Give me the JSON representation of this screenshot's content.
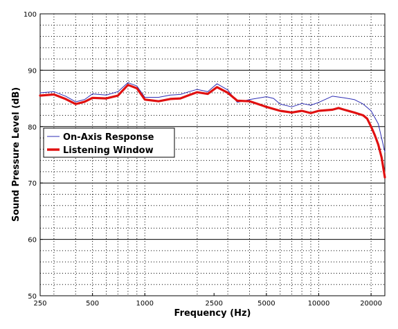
{
  "chart_data": {
    "type": "line",
    "xlabel": "Frequency (Hz)",
    "ylabel": "Sound Pressure Level (dB)",
    "xscale": "log",
    "xlim": [
      250,
      24000
    ],
    "ylim": [
      50,
      100
    ],
    "xticks": [
      250,
      500,
      1000,
      2500,
      5000,
      10000,
      20000
    ],
    "xtick_labels": [
      "250",
      "500",
      "1000",
      "2500",
      "5000",
      "10000",
      "20000"
    ],
    "yticks": [
      50,
      60,
      70,
      80,
      90,
      100
    ],
    "ytick_labels": [
      "50",
      "60",
      "70",
      "80",
      "90",
      "100"
    ],
    "grid": "major solid horizontal, minor dotted",
    "legend_position": "center-left",
    "series": [
      {
        "name": "On-Axis Response",
        "color": "#2d2db4",
        "points": [
          [
            250,
            86
          ],
          [
            300,
            86.2
          ],
          [
            350,
            85.4
          ],
          [
            400,
            84.4
          ],
          [
            450,
            84.8
          ],
          [
            500,
            85.8
          ],
          [
            600,
            85.6
          ],
          [
            700,
            86.2
          ],
          [
            800,
            87.8
          ],
          [
            900,
            87.2
          ],
          [
            1000,
            85.2
          ],
          [
            1200,
            85.2
          ],
          [
            1400,
            85.6
          ],
          [
            1600,
            85.7
          ],
          [
            1800,
            86.2
          ],
          [
            2000,
            86.6
          ],
          [
            2300,
            86.2
          ],
          [
            2600,
            87.6
          ],
          [
            3000,
            86.5
          ],
          [
            3400,
            84.3
          ],
          [
            4000,
            84.8
          ],
          [
            5000,
            85.3
          ],
          [
            5500,
            85
          ],
          [
            6000,
            84
          ],
          [
            7000,
            83.5
          ],
          [
            8000,
            84.1
          ],
          [
            9000,
            83.8
          ],
          [
            10000,
            84.3
          ],
          [
            12000,
            85.4
          ],
          [
            14000,
            85.1
          ],
          [
            16000,
            84.8
          ],
          [
            18000,
            84
          ],
          [
            20000,
            82.8
          ],
          [
            22000,
            80.5
          ],
          [
            24000,
            75.5
          ]
        ]
      },
      {
        "name": "Listening Window",
        "color": "#e01010",
        "points": [
          [
            250,
            85.5
          ],
          [
            300,
            85.7
          ],
          [
            350,
            84.9
          ],
          [
            400,
            84
          ],
          [
            450,
            84.4
          ],
          [
            500,
            85.1
          ],
          [
            600,
            85
          ],
          [
            700,
            85.5
          ],
          [
            800,
            87.4
          ],
          [
            900,
            86.8
          ],
          [
            1000,
            84.8
          ],
          [
            1200,
            84.5
          ],
          [
            1400,
            84.9
          ],
          [
            1600,
            85
          ],
          [
            1800,
            85.6
          ],
          [
            2000,
            86.1
          ],
          [
            2300,
            85.8
          ],
          [
            2600,
            87
          ],
          [
            3000,
            86
          ],
          [
            3400,
            84.6
          ],
          [
            4000,
            84.5
          ],
          [
            5000,
            83.5
          ],
          [
            6000,
            82.8
          ],
          [
            7000,
            82.5
          ],
          [
            8000,
            82.8
          ],
          [
            9000,
            82.4
          ],
          [
            10000,
            82.8
          ],
          [
            12000,
            83
          ],
          [
            13000,
            83.3
          ],
          [
            14000,
            83
          ],
          [
            16000,
            82.5
          ],
          [
            18000,
            82
          ],
          [
            19000,
            81.4
          ],
          [
            20000,
            80
          ],
          [
            21000,
            78.5
          ],
          [
            22000,
            76.8
          ],
          [
            23000,
            74.5
          ],
          [
            24000,
            71
          ]
        ]
      }
    ]
  }
}
